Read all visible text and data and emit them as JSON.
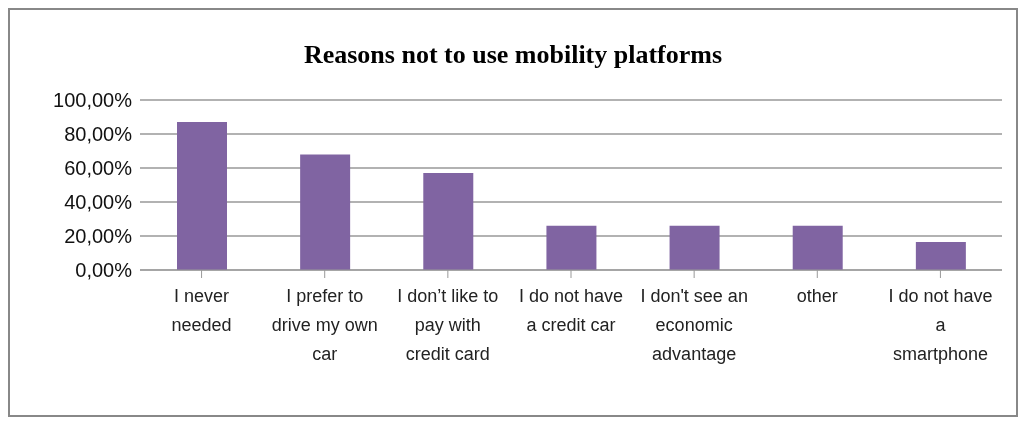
{
  "chart_data": {
    "type": "bar",
    "title": "Reasons not to use mobility platforms",
    "categories": [
      "I never needed",
      "I prefer to drive my own car",
      "I don’t like to pay with credit card",
      "I do not have a credit car",
      "I don't see an economic advantage",
      "other",
      "I do not have a smartphone"
    ],
    "values": [
      87,
      68,
      57,
      26,
      26,
      26,
      16.5
    ],
    "color": "#8064a2",
    "ylim": [
      0,
      100
    ],
    "yticks": [
      {
        "value": 0,
        "label": "0,00%"
      },
      {
        "value": 20,
        "label": "20,00%"
      },
      {
        "value": 40,
        "label": "40,00%"
      },
      {
        "value": 60,
        "label": "60,00%"
      },
      {
        "value": 80,
        "label": "80,00%"
      },
      {
        "value": 100,
        "label": "100,00%"
      }
    ],
    "grid": "y",
    "legend": false
  }
}
